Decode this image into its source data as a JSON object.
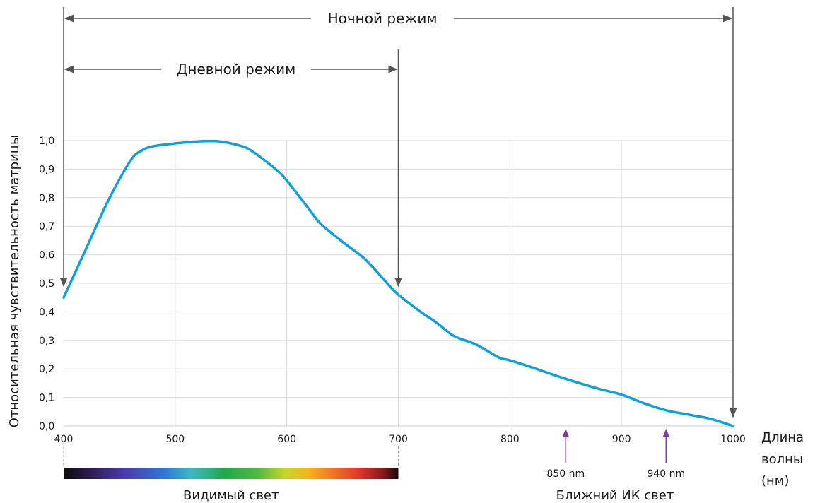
{
  "chart_data": {
    "type": "line",
    "ylabel": "Относительная чувствительность матрицы",
    "xlabel_lines": [
      "Длина",
      "волны",
      "(нм)"
    ],
    "xlim": [
      400,
      1000
    ],
    "ylim": [
      0,
      1.0
    ],
    "x_ticks": [
      "400",
      "500",
      "600",
      "700",
      "800",
      "900",
      "1000"
    ],
    "y_ticks": [
      "0,0",
      "0,1",
      "0,2",
      "0,3",
      "0,4",
      "0,5",
      "0,6",
      "0,7",
      "0,8",
      "0,9",
      "1,0"
    ],
    "grid": true,
    "series": [
      {
        "color": "#0ea0dc",
        "points": [
          [
            400,
            0.45
          ],
          [
            420,
            0.62
          ],
          [
            440,
            0.79
          ],
          [
            460,
            0.93
          ],
          [
            470,
            0.965
          ],
          [
            480,
            0.98
          ],
          [
            500,
            0.99
          ],
          [
            520,
            0.997
          ],
          [
            540,
            0.997
          ],
          [
            560,
            0.98
          ],
          [
            570,
            0.96
          ],
          [
            590,
            0.9
          ],
          [
            600,
            0.86
          ],
          [
            620,
            0.76
          ],
          [
            630,
            0.71
          ],
          [
            650,
            0.645
          ],
          [
            670,
            0.585
          ],
          [
            690,
            0.5
          ],
          [
            700,
            0.46
          ],
          [
            720,
            0.4
          ],
          [
            735,
            0.36
          ],
          [
            750,
            0.315
          ],
          [
            770,
            0.285
          ],
          [
            790,
            0.24
          ],
          [
            800,
            0.23
          ],
          [
            820,
            0.205
          ],
          [
            850,
            0.165
          ],
          [
            880,
            0.13
          ],
          [
            900,
            0.11
          ],
          [
            920,
            0.08
          ],
          [
            940,
            0.055
          ],
          [
            960,
            0.04
          ],
          [
            980,
            0.025
          ],
          [
            1000,
            0.0
          ]
        ]
      }
    ],
    "annotations": {
      "night_mode": {
        "label": "Ночной режим",
        "from": 400,
        "to": 1000,
        "color": "#555555"
      },
      "day_mode": {
        "label": "Дневной режим",
        "from": 400,
        "to": 700,
        "color": "#555555"
      },
      "markers": [
        {
          "label": "850 nm",
          "x": 850,
          "color": "#7b3d95"
        },
        {
          "label": "940 nm",
          "x": 940,
          "color": "#7b3d95"
        }
      ],
      "visible_light_label": "Видимый свет",
      "visible_range": [
        400,
        700
      ],
      "nir_label": "Ближний ИК свет"
    }
  }
}
